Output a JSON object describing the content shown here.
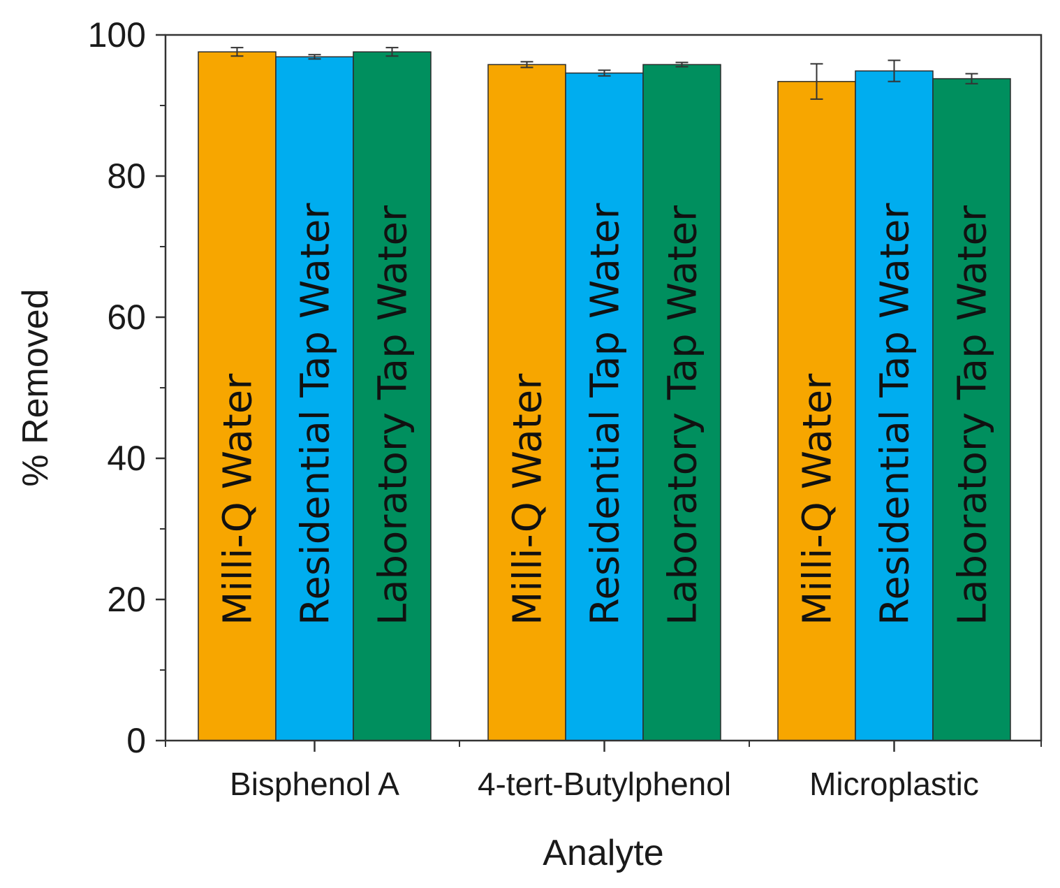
{
  "chart_data": {
    "type": "bar",
    "title": "",
    "xlabel": "Analyte",
    "ylabel": "% Removed",
    "ylim": [
      0,
      100
    ],
    "yticks": [
      0,
      20,
      40,
      60,
      80,
      100
    ],
    "yminor_step": 10,
    "grid": false,
    "legend": "none (series names printed inside bars)",
    "categories": [
      "Bisphenol A",
      "4-tert-Butylphenol",
      "Microplastic"
    ],
    "series": [
      {
        "name": "Milli-Q Water",
        "color": "#F7A600",
        "values": [
          97.6,
          95.8,
          93.4
        ],
        "errors": [
          0.6,
          0.4,
          2.5
        ]
      },
      {
        "name": "Residential Tap Water",
        "color": "#00ADEF",
        "values": [
          96.9,
          94.6,
          94.9
        ],
        "errors": [
          0.3,
          0.4,
          1.5
        ]
      },
      {
        "name": "Laboratory Tap Water",
        "color": "#008F5E",
        "values": [
          97.6,
          95.8,
          93.8
        ],
        "errors": [
          0.6,
          0.3,
          0.7
        ]
      }
    ]
  }
}
